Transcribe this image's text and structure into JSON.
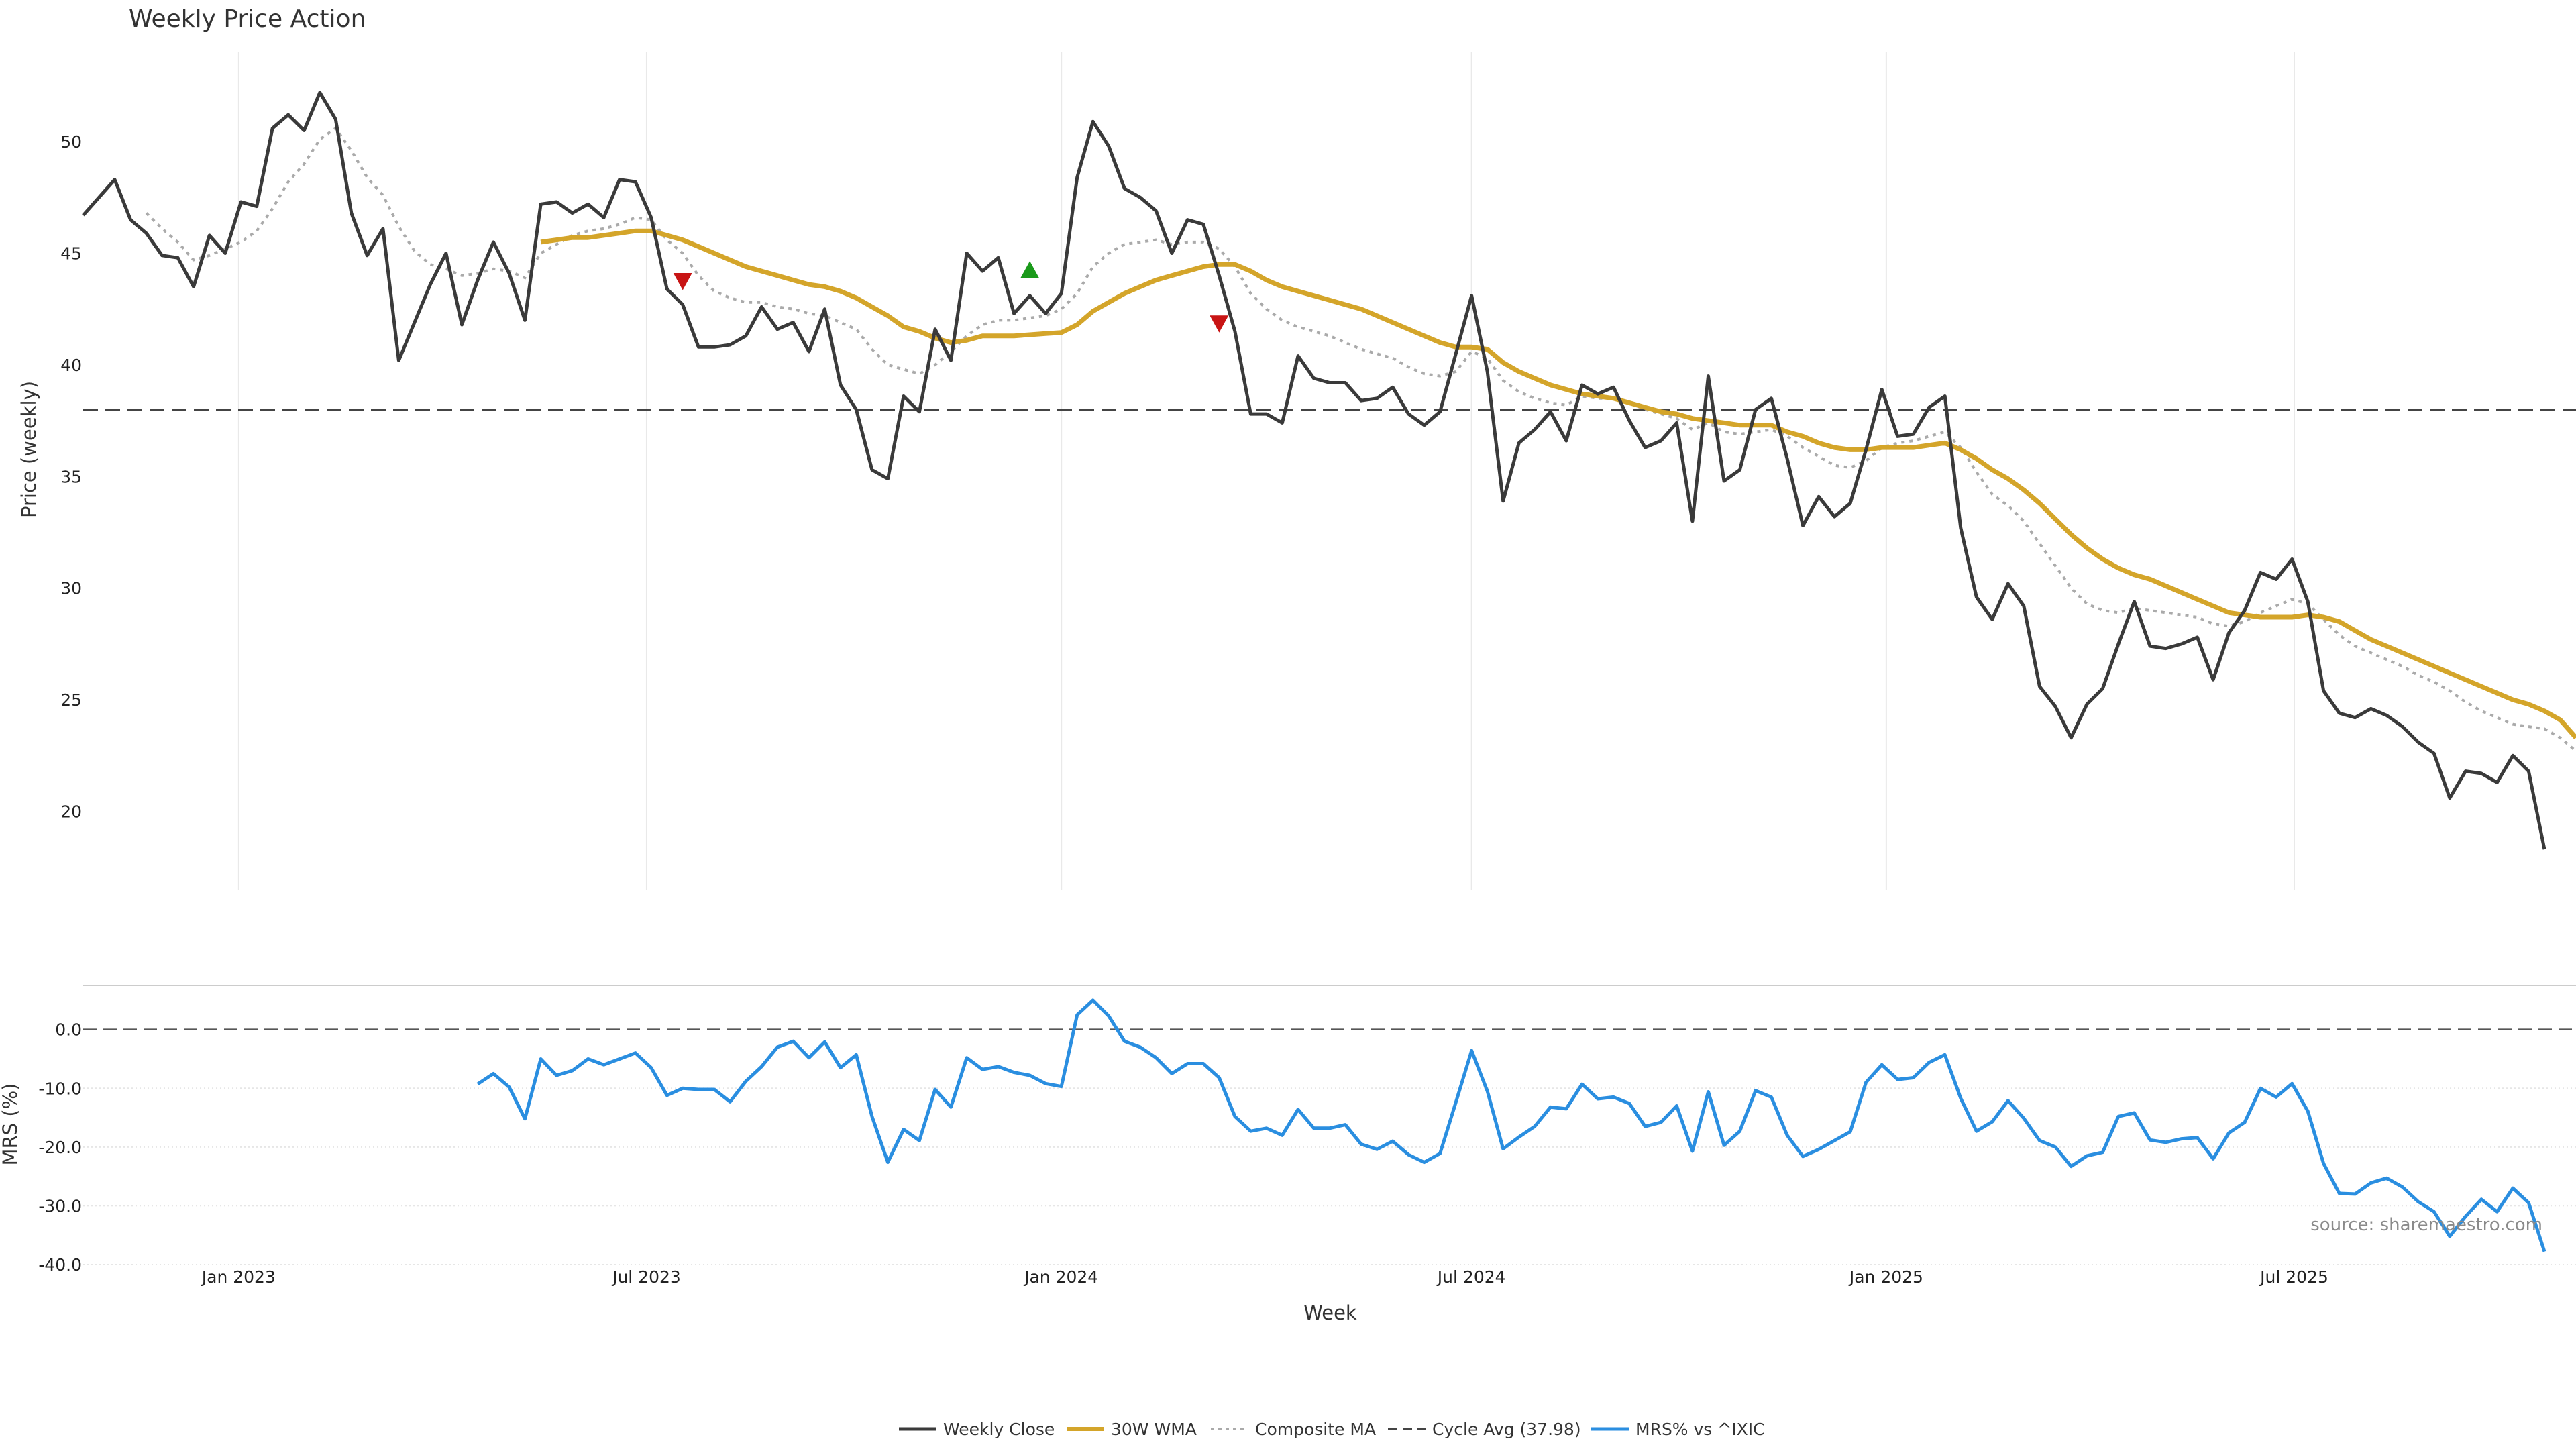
{
  "chart_data": {
    "type": "line",
    "title": "Weekly Price Action",
    "source_note": "source: sharemaestro.com",
    "xlabel": "Week",
    "x_ticks": [
      "Jan 2023",
      "Jul 2023",
      "Jan 2024",
      "Jul 2024",
      "Jan 2025",
      "Jul 2025"
    ],
    "x_range": [
      "2022-10-24",
      "2025-11-03"
    ],
    "grid": true,
    "legend_position": "bottom-center",
    "colors": {
      "weekly_close": "#3a3a3a",
      "wma": "#d4a52a",
      "composite": "#aaaaaa",
      "cycle_avg": "#444444",
      "mrs": "#2a8ee0",
      "signal_up": "#1a9a1a",
      "signal_down": "#c81414"
    },
    "price_panel": {
      "ylabel": "Price (weekly)",
      "y_ticks": [
        20,
        25,
        30,
        35,
        40,
        45,
        50
      ],
      "ylim": [
        16.5,
        54
      ],
      "weekly_close": [
        46.7,
        47.5,
        48.3,
        46.5,
        45.9,
        44.9,
        44.8,
        43.5,
        45.8,
        45.0,
        47.3,
        47.1,
        50.6,
        51.2,
        50.5,
        52.2,
        51.0,
        46.8,
        44.9,
        46.1,
        40.2,
        41.9,
        43.6,
        45.0,
        41.8,
        43.8,
        45.5,
        44.1,
        42.0,
        47.2,
        47.3,
        46.8,
        47.2,
        46.6,
        48.3,
        48.2,
        46.6,
        43.4,
        42.7,
        40.8,
        40.8,
        40.9,
        41.3,
        42.6,
        41.6,
        41.9,
        40.6,
        42.5,
        39.1,
        38.0,
        35.3,
        34.9,
        38.6,
        37.9,
        41.6,
        40.2,
        45.0,
        44.2,
        44.8,
        42.3,
        43.1,
        42.3,
        43.2,
        48.4,
        50.9,
        49.8,
        47.9,
        47.5,
        46.9,
        45.0,
        46.5,
        46.3,
        44.0,
        41.5,
        37.8,
        37.8,
        37.4,
        40.4,
        39.4,
        39.2,
        39.2,
        38.4,
        38.5,
        39.0,
        37.8,
        37.3,
        37.9,
        40.5,
        43.1,
        39.7,
        33.9,
        36.5,
        37.1,
        37.9,
        36.6,
        39.1,
        38.7,
        39.0,
        37.5,
        36.3,
        36.6,
        37.4,
        33.0,
        39.5,
        34.8,
        35.3,
        38.0,
        38.5,
        35.8,
        32.8,
        34.1,
        33.2,
        33.8,
        36.2,
        38.9,
        36.8,
        36.9,
        38.1,
        38.6,
        32.7,
        29.6,
        28.6,
        30.2,
        29.2,
        25.6,
        24.7,
        23.3,
        24.8,
        25.5,
        27.5,
        29.4,
        27.4,
        27.3,
        27.5,
        27.8,
        25.9,
        28.0,
        29.0,
        30.7,
        30.4,
        31.3,
        29.4,
        25.4,
        24.4,
        24.2,
        24.6,
        24.3,
        23.8,
        23.1,
        22.6,
        20.6,
        21.8,
        21.7,
        21.3,
        22.5,
        21.8,
        18.3
      ],
      "wma_30w": [
        null,
        null,
        null,
        null,
        null,
        null,
        null,
        null,
        null,
        null,
        null,
        null,
        null,
        null,
        null,
        null,
        null,
        null,
        null,
        null,
        null,
        null,
        null,
        null,
        null,
        null,
        null,
        null,
        null,
        45.5,
        45.6,
        45.7,
        45.7,
        45.8,
        45.9,
        46.0,
        46.0,
        45.8,
        45.6,
        45.3,
        45.0,
        44.7,
        44.4,
        44.2,
        44.0,
        43.8,
        43.6,
        43.5,
        43.3,
        43.0,
        42.6,
        42.2,
        41.7,
        41.5,
        41.2,
        41.0,
        41.1,
        41.3,
        41.3,
        41.3,
        41.35,
        41.4,
        41.45,
        41.8,
        42.4,
        42.8,
        43.2,
        43.5,
        43.8,
        44.0,
        44.2,
        44.4,
        44.5,
        44.5,
        44.2,
        43.8,
        43.5,
        43.3,
        43.1,
        42.9,
        42.7,
        42.5,
        42.2,
        41.9,
        41.6,
        41.3,
        41.0,
        40.8,
        40.8,
        40.7,
        40.1,
        39.7,
        39.4,
        39.1,
        38.9,
        38.7,
        38.6,
        38.5,
        38.3,
        38.1,
        37.9,
        37.8,
        37.6,
        37.5,
        37.4,
        37.3,
        37.3,
        37.3,
        37.0,
        36.8,
        36.5,
        36.3,
        36.2,
        36.2,
        36.3,
        36.3,
        36.3,
        36.4,
        36.5,
        36.2,
        35.8,
        35.3,
        34.9,
        34.4,
        33.8,
        33.1,
        32.4,
        31.8,
        31.3,
        30.9,
        30.6,
        30.4,
        30.1,
        29.8,
        29.5,
        29.2,
        28.9,
        28.8,
        28.7,
        28.7,
        28.7,
        28.8,
        28.7,
        28.5,
        28.1,
        27.7,
        27.4,
        27.1,
        26.8,
        26.5,
        26.2,
        25.9,
        25.6,
        25.3,
        25.0,
        24.8,
        24.5,
        24.1,
        23.3
      ],
      "composite_ma": [
        null,
        null,
        null,
        null,
        46.8,
        46.1,
        45.5,
        44.7,
        44.9,
        45.2,
        45.5,
        46.0,
        47.0,
        48.2,
        49.0,
        50.1,
        50.6,
        49.6,
        48.4,
        47.6,
        46.2,
        45.1,
        44.5,
        44.3,
        44.0,
        44.1,
        44.3,
        44.2,
        43.9,
        45.0,
        45.4,
        45.8,
        46.0,
        46.1,
        46.3,
        46.6,
        46.5,
        45.6,
        45.0,
        44.0,
        43.3,
        43.0,
        42.8,
        42.8,
        42.6,
        42.5,
        42.3,
        42.2,
        41.9,
        41.6,
        40.7,
        40.0,
        39.8,
        39.6,
        40.0,
        40.6,
        41.3,
        41.8,
        42.0,
        42.0,
        42.1,
        42.2,
        42.5,
        43.2,
        44.4,
        45.0,
        45.4,
        45.5,
        45.6,
        45.4,
        45.5,
        45.5,
        45.2,
        44.4,
        43.2,
        42.5,
        42.0,
        41.7,
        41.5,
        41.3,
        41.0,
        40.7,
        40.5,
        40.3,
        39.9,
        39.6,
        39.5,
        39.7,
        40.6,
        40.3,
        39.3,
        38.8,
        38.5,
        38.3,
        38.2,
        38.6,
        38.5,
        38.5,
        38.3,
        38.0,
        37.8,
        37.6,
        37.1,
        37.4,
        37.0,
        36.9,
        37.0,
        37.1,
        36.8,
        36.3,
        35.9,
        35.5,
        35.4,
        35.7,
        36.3,
        36.5,
        36.6,
        36.8,
        37.0,
        36.3,
        35.2,
        34.2,
        33.7,
        33.0,
        32.0,
        31.0,
        30.0,
        29.3,
        29.0,
        28.9,
        29.1,
        29.0,
        28.9,
        28.8,
        28.7,
        28.4,
        28.3,
        28.5,
        28.9,
        29.2,
        29.5,
        29.3,
        28.6,
        27.9,
        27.4,
        27.1,
        26.8,
        26.5,
        26.1,
        25.8,
        25.4,
        24.9,
        24.5,
        24.2,
        23.9,
        23.8,
        23.7,
        23.3,
        22.7
      ],
      "cycle_avg": {
        "value": 37.98,
        "label": "Cycle Avg (37.98)"
      },
      "signals": [
        {
          "week_index": 38,
          "price": 43.8,
          "direction": "down"
        },
        {
          "week_index": 60,
          "price": 44.2,
          "direction": "up"
        },
        {
          "week_index": 72,
          "price": 41.9,
          "direction": "down"
        }
      ]
    },
    "mrs_panel": {
      "ylabel": "MRS (%)",
      "y_ticks": [
        "0.0",
        "-10.0",
        "-20.0",
        "-30.0",
        "-40.0"
      ],
      "ylim": [
        -40,
        7.5
      ],
      "zero_line": 0,
      "mrs_vs_ixic": [
        null,
        null,
        null,
        null,
        null,
        null,
        null,
        null,
        null,
        null,
        null,
        null,
        null,
        null,
        null,
        null,
        null,
        null,
        null,
        null,
        null,
        null,
        null,
        null,
        null,
        -9.3,
        -7.5,
        -9.8,
        -15.2,
        -5.0,
        -7.8,
        -7.0,
        -5.0,
        -6.0,
        -5.0,
        -4.0,
        -6.5,
        -11.2,
        -10.0,
        -10.2,
        -10.2,
        -12.3,
        -8.8,
        -6.3,
        -3.0,
        -2.0,
        -4.8,
        -2.1,
        -6.5,
        -4.3,
        -14.8,
        -22.6,
        -17.0,
        -18.9,
        -10.2,
        -13.2,
        -4.8,
        -6.8,
        -6.3,
        -7.3,
        -7.8,
        -9.2,
        -9.7,
        2.5,
        5.0,
        2.3,
        -2.0,
        -3.0,
        -4.8,
        -7.5,
        -5.8,
        -5.8,
        -8.2,
        -14.8,
        -17.3,
        -16.8,
        -18.0,
        -13.6,
        -16.8,
        -16.8,
        -16.2,
        -19.5,
        -20.4,
        -19.0,
        -21.3,
        -22.6,
        -21.1,
        -12.4,
        -3.6,
        -10.5,
        -20.3,
        -18.3,
        -16.5,
        -13.2,
        -13.5,
        -9.3,
        -11.8,
        -11.5,
        -12.6,
        -16.5,
        -15.8,
        -13.0,
        -20.7,
        -10.6,
        -19.7,
        -17.3,
        -10.4,
        -11.5,
        -18.0,
        -21.6,
        -20.4,
        -18.9,
        -17.4,
        -9.0,
        -6.0,
        -8.5,
        -8.2,
        -5.6,
        -4.3,
        -11.7,
        -17.3,
        -15.7,
        -12.1,
        -15.1,
        -18.9,
        -20.0,
        -23.3,
        -21.5,
        -20.9,
        -14.8,
        -14.2,
        -18.8,
        -19.2,
        -18.6,
        -18.4,
        -22.0,
        -17.6,
        -15.8,
        -10.0,
        -11.5,
        -9.2,
        -13.9,
        -22.8,
        -27.9,
        -28.0,
        -26.1,
        -25.3,
        -26.8,
        -29.3,
        -31.0,
        -35.2,
        -31.8,
        -28.9,
        -31.0,
        -27.0,
        -29.5,
        -37.8
      ]
    },
    "legend": [
      {
        "key": "weekly_close",
        "label": "Weekly Close",
        "style": "solid"
      },
      {
        "key": "wma",
        "label": "30W WMA",
        "style": "solid"
      },
      {
        "key": "composite",
        "label": "Composite MA",
        "style": "dotted"
      },
      {
        "key": "cycle_avg",
        "label": "Cycle Avg (37.98)",
        "style": "dashed"
      },
      {
        "key": "mrs",
        "label": "MRS% vs ^IXIC",
        "style": "solid"
      }
    ]
  }
}
